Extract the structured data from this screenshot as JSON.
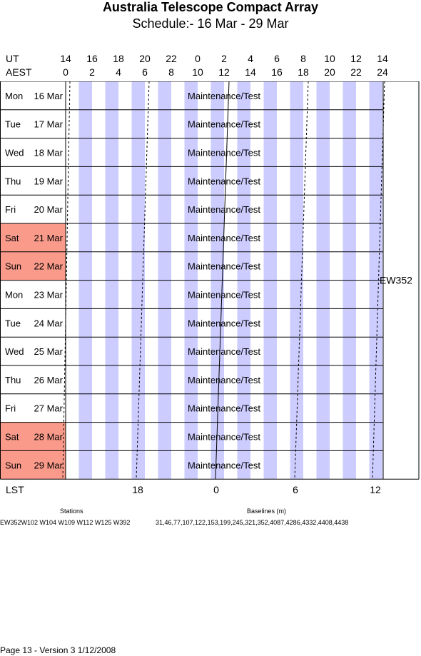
{
  "title": "Australia Telescope Compact Array",
  "subtitle": "Schedule:- 16 Mar - 29 Mar",
  "axis": {
    "ut_label": "UT",
    "aest_label": "AEST",
    "lst_label": "LST",
    "ut_ticks": [
      "14",
      "16",
      "18",
      "20",
      "22",
      "0",
      "2",
      "4",
      "6",
      "8",
      "10",
      "12",
      "14"
    ],
    "aest_ticks": [
      "0",
      "2",
      "4",
      "6",
      "8",
      "10",
      "12",
      "14",
      "16",
      "18",
      "20",
      "22",
      "24"
    ],
    "lst_ticks": [
      "18",
      "0",
      "6",
      "12"
    ]
  },
  "days": [
    {
      "dow": "Mon",
      "date": "16 Mar",
      "weekend": false,
      "block": "Maintenance/Test"
    },
    {
      "dow": "Tue",
      "date": "17 Mar",
      "weekend": false,
      "block": "Maintenance/Test"
    },
    {
      "dow": "Wed",
      "date": "18 Mar",
      "weekend": false,
      "block": "Maintenance/Test"
    },
    {
      "dow": "Thu",
      "date": "19 Mar",
      "weekend": false,
      "block": "Maintenance/Test"
    },
    {
      "dow": "Fri",
      "date": "20 Mar",
      "weekend": false,
      "block": "Maintenance/Test"
    },
    {
      "dow": "Sat",
      "date": "21 Mar",
      "weekend": true,
      "block": "Maintenance/Test"
    },
    {
      "dow": "Sun",
      "date": "22 Mar",
      "weekend": true,
      "block": "Maintenance/Test"
    },
    {
      "dow": "Mon",
      "date": "23 Mar",
      "weekend": false,
      "block": "Maintenance/Test"
    },
    {
      "dow": "Tue",
      "date": "24 Mar",
      "weekend": false,
      "block": "Maintenance/Test"
    },
    {
      "dow": "Wed",
      "date": "25 Mar",
      "weekend": false,
      "block": "Maintenance/Test"
    },
    {
      "dow": "Thu",
      "date": "26 Mar",
      "weekend": false,
      "block": "Maintenance/Test"
    },
    {
      "dow": "Fri",
      "date": "27 Mar",
      "weekend": false,
      "block": "Maintenance/Test"
    },
    {
      "dow": "Sat",
      "date": "28 Mar",
      "weekend": true,
      "block": "Maintenance/Test"
    },
    {
      "dow": "Sun",
      "date": "29 Mar",
      "weekend": true,
      "block": "Maintenance/Test"
    }
  ],
  "config_label": "EW352",
  "stations": {
    "heading": "Stations",
    "value": "EW352W102 W104 W109 W112 W125 W392"
  },
  "baselines": {
    "heading": "Baselines (m)",
    "value": "31,46,77,107,122,153,199,245,321,352,4087,4286,4332,4408,4438"
  },
  "footer": "Page 13 - Version 3  1/12/2008",
  "colors": {
    "stripe": "#ccccff",
    "weekend": "#fa9a8a",
    "grid": "#000000"
  }
}
